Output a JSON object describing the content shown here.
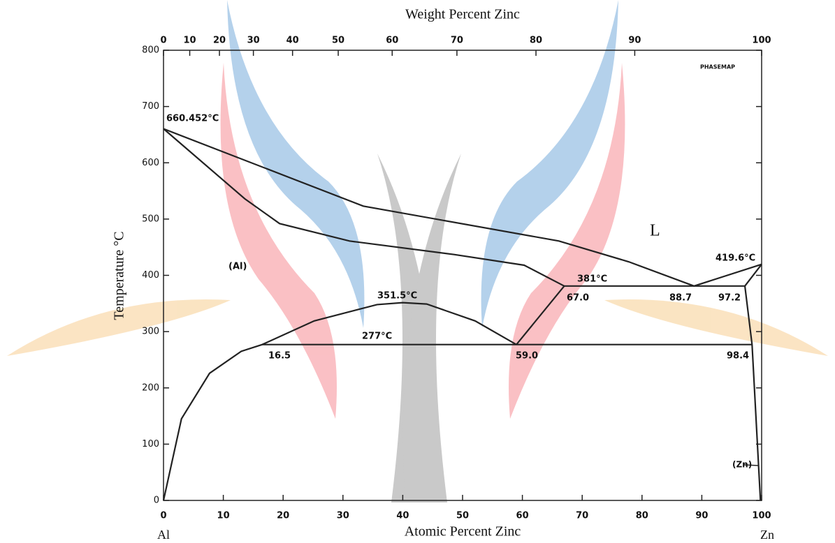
{
  "chart_data": {
    "type": "line",
    "title": "Weight Percent Zinc",
    "xlabel": "Atomic Percent Zinc",
    "ylabel": "Temperature °C",
    "xlim": [
      0,
      100
    ],
    "xticks": [
      0,
      10,
      20,
      30,
      40,
      50,
      60,
      70,
      80,
      90,
      100
    ],
    "x2lim": [
      0,
      100
    ],
    "x2ticks": [
      0,
      10,
      20,
      30,
      40,
      50,
      60,
      70,
      80,
      90,
      100
    ],
    "ylim": [
      0,
      800
    ],
    "yticks": [
      0,
      100,
      200,
      300,
      400,
      500,
      600,
      700,
      800
    ],
    "series": [
      {
        "color": "#222222",
        "x": [
          0,
          33.4,
          66.1,
          77.8,
          88.7
        ],
        "values": [
          660.452,
          523,
          461,
          424,
          381
        ]
      },
      {
        "color": "#222222",
        "x": [
          0,
          13.6,
          19.4,
          31.1,
          48.6,
          60.3,
          67.0
        ],
        "values": [
          660.452,
          536,
          492,
          461,
          437,
          418,
          381
        ]
      },
      {
        "color": "#222222",
        "x": [
          0,
          3,
          7.7,
          13,
          16.5,
          25.2,
          35.7,
          40,
          44,
          52.1,
          59.0
        ],
        "values": [
          0,
          145,
          226,
          265,
          277,
          319,
          348,
          351.5,
          349,
          319,
          277
        ]
      },
      {
        "color": "#222222",
        "x": [
          16.5,
          98.4
        ],
        "values": [
          277,
          277
        ]
      },
      {
        "color": "#222222",
        "x": [
          59.0,
          67.0
        ],
        "values": [
          277,
          381
        ]
      },
      {
        "color": "#222222",
        "x": [
          67.0,
          97.2
        ],
        "values": [
          381,
          381
        ]
      },
      {
        "color": "#222222",
        "x": [
          88.7,
          100
        ],
        "values": [
          381,
          419.6
        ]
      },
      {
        "color": "#222222",
        "x": [
          97.2,
          100
        ],
        "values": [
          381,
          419.6
        ]
      },
      {
        "color": "#222222",
        "x": [
          97.2,
          98.4,
          99.8
        ],
        "values": [
          381,
          277,
          0
        ]
      }
    ],
    "annotations": [
      "660.452°C",
      "(Al)",
      "351.5°C",
      "277°C",
      "381°C",
      "419.6°C",
      "16.5",
      "59.0",
      "67.0",
      "88.7",
      "97.2",
      "98.4",
      "L",
      "(Zn)",
      "PHASEMAP",
      "Al",
      "Zn"
    ]
  }
}
